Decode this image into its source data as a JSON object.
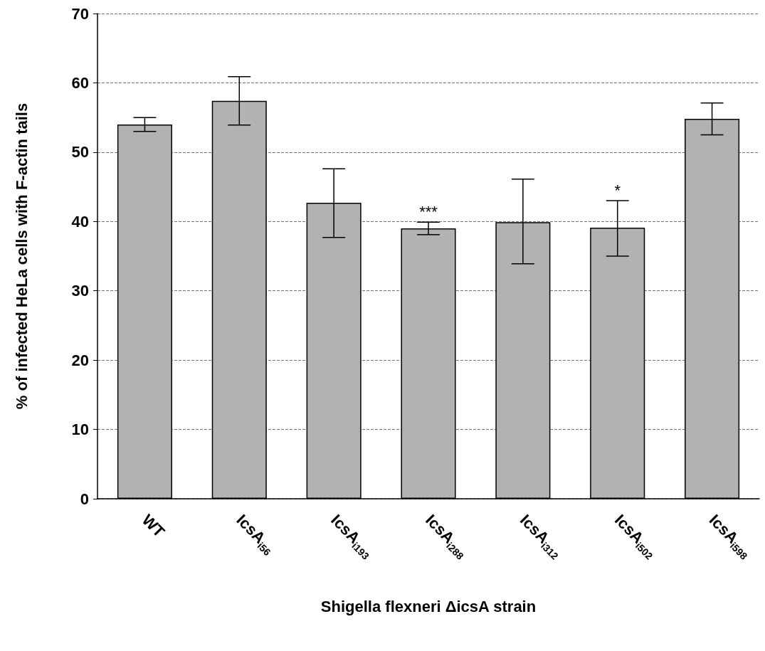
{
  "chart_data": {
    "type": "bar",
    "categories": [
      "WT",
      "IcsA$_{i56}$",
      "IcsA$_{i193}$",
      "IcsA$_{i288}$",
      "IcsA$_{i312}$",
      "IcsA$_{i502}$",
      "IcsA$_{i598}$"
    ],
    "values": [
      54.0,
      57.4,
      42.7,
      39.0,
      39.9,
      39.1,
      54.8
    ],
    "errors": [
      [
        53.0,
        55.0
      ],
      [
        53.9,
        60.9
      ],
      [
        37.7,
        47.6
      ],
      [
        38.1,
        39.9
      ],
      [
        33.9,
        46.1
      ],
      [
        35.0,
        43.0
      ],
      [
        52.5,
        57.1
      ]
    ],
    "color": "#b2b2b2",
    "xlabel": "Shigella flexneri ΔicsA strain",
    "ylabel": "% of infected HeLa cells with F-actin tails",
    "ylim": [
      0,
      70
    ],
    "yticks": [
      0,
      10,
      20,
      30,
      40,
      50,
      60,
      70
    ],
    "grid": "y",
    "annotations": [
      {
        "text": "***",
        "x": "IcsA$_{i288}$",
        "y": 39.9
      },
      {
        "text": "*",
        "x": "IcsA$_{i502}$",
        "y": 43.0
      }
    ]
  }
}
